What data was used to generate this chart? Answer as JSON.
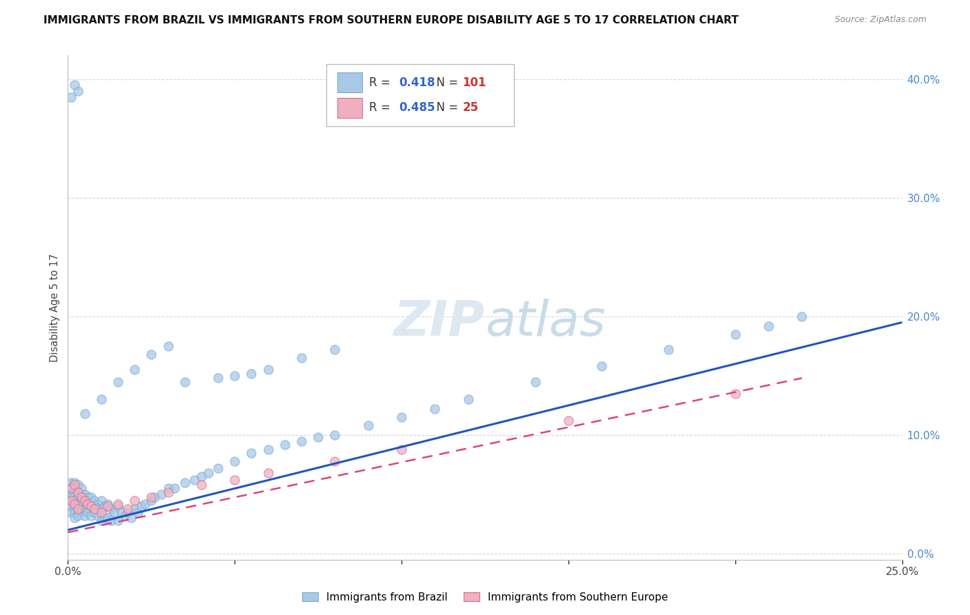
{
  "title": "IMMIGRANTS FROM BRAZIL VS IMMIGRANTS FROM SOUTHERN EUROPE DISABILITY AGE 5 TO 17 CORRELATION CHART",
  "source": "Source: ZipAtlas.com",
  "ylabel": "Disability Age 5 to 17",
  "legend_label1": "Immigrants from Brazil",
  "legend_label2": "Immigrants from Southern Europe",
  "r1": 0.418,
  "n1": 101,
  "r2": 0.485,
  "n2": 25,
  "background_color": "#ffffff",
  "brazil_color": "#a8c8e8",
  "brazil_edge": "#7aaad0",
  "seurope_color": "#f0b0c0",
  "seurope_edge": "#d07090",
  "line1_color": "#2255bb",
  "line2_color": "#dd4477",
  "xlim": [
    0.0,
    0.25
  ],
  "ylim": [
    -0.005,
    0.42
  ],
  "yticks": [
    0.0,
    0.1,
    0.2,
    0.3,
    0.4
  ],
  "line1_x0": 0.0,
  "line1_y0": 0.02,
  "line1_x1": 0.25,
  "line1_y1": 0.195,
  "line2_x0": 0.0,
  "line2_y0": 0.018,
  "line2_x1": 0.22,
  "line2_y1": 0.148,
  "brazil_x": [
    0.001,
    0.001,
    0.001,
    0.001,
    0.001,
    0.001,
    0.001,
    0.002,
    0.002,
    0.002,
    0.002,
    0.002,
    0.002,
    0.002,
    0.003,
    0.003,
    0.003,
    0.003,
    0.003,
    0.003,
    0.004,
    0.004,
    0.004,
    0.004,
    0.005,
    0.005,
    0.005,
    0.005,
    0.006,
    0.006,
    0.006,
    0.007,
    0.007,
    0.007,
    0.008,
    0.008,
    0.009,
    0.009,
    0.01,
    0.01,
    0.01,
    0.011,
    0.011,
    0.012,
    0.012,
    0.013,
    0.013,
    0.014,
    0.015,
    0.015,
    0.016,
    0.017,
    0.018,
    0.019,
    0.02,
    0.021,
    0.022,
    0.023,
    0.025,
    0.026,
    0.028,
    0.03,
    0.032,
    0.035,
    0.038,
    0.04,
    0.042,
    0.045,
    0.05,
    0.055,
    0.06,
    0.065,
    0.07,
    0.075,
    0.08,
    0.09,
    0.1,
    0.11,
    0.12,
    0.14,
    0.16,
    0.18,
    0.2,
    0.21,
    0.22,
    0.03,
    0.025,
    0.02,
    0.015,
    0.01,
    0.005,
    0.003,
    0.002,
    0.001,
    0.05,
    0.06,
    0.035,
    0.045,
    0.055,
    0.07,
    0.08
  ],
  "brazil_y": [
    0.06,
    0.055,
    0.05,
    0.048,
    0.045,
    0.04,
    0.035,
    0.06,
    0.055,
    0.05,
    0.045,
    0.04,
    0.035,
    0.03,
    0.058,
    0.052,
    0.048,
    0.042,
    0.036,
    0.032,
    0.055,
    0.048,
    0.042,
    0.036,
    0.05,
    0.045,
    0.038,
    0.032,
    0.048,
    0.042,
    0.035,
    0.048,
    0.04,
    0.032,
    0.045,
    0.035,
    0.042,
    0.032,
    0.045,
    0.038,
    0.028,
    0.04,
    0.03,
    0.042,
    0.03,
    0.038,
    0.028,
    0.035,
    0.04,
    0.028,
    0.035,
    0.032,
    0.035,
    0.03,
    0.038,
    0.035,
    0.04,
    0.042,
    0.045,
    0.048,
    0.05,
    0.055,
    0.055,
    0.06,
    0.062,
    0.065,
    0.068,
    0.072,
    0.078,
    0.085,
    0.088,
    0.092,
    0.095,
    0.098,
    0.1,
    0.108,
    0.115,
    0.122,
    0.13,
    0.145,
    0.158,
    0.172,
    0.185,
    0.192,
    0.2,
    0.175,
    0.168,
    0.155,
    0.145,
    0.13,
    0.118,
    0.39,
    0.395,
    0.385,
    0.15,
    0.155,
    0.145,
    0.148,
    0.152,
    0.165,
    0.172
  ],
  "seurope_x": [
    0.001,
    0.001,
    0.002,
    0.002,
    0.003,
    0.003,
    0.004,
    0.005,
    0.006,
    0.007,
    0.008,
    0.01,
    0.012,
    0.015,
    0.018,
    0.02,
    0.025,
    0.03,
    0.04,
    0.05,
    0.06,
    0.08,
    0.1,
    0.15,
    0.2
  ],
  "seurope_y": [
    0.055,
    0.045,
    0.058,
    0.042,
    0.052,
    0.038,
    0.048,
    0.045,
    0.042,
    0.04,
    0.038,
    0.035,
    0.04,
    0.042,
    0.038,
    0.045,
    0.048,
    0.052,
    0.058,
    0.062,
    0.068,
    0.078,
    0.088,
    0.112,
    0.135
  ]
}
